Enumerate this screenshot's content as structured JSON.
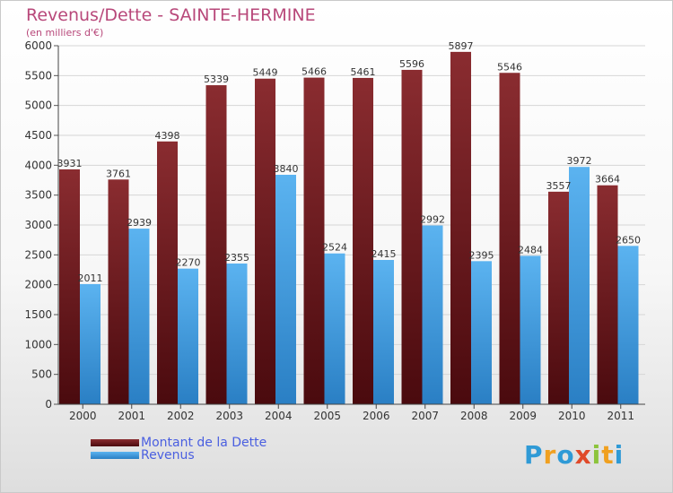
{
  "title": "Revenus/Dette - SAINTE-HERMINE",
  "subtitle": "(en milliers d'€)",
  "logo": {
    "letters": [
      "P",
      "r",
      "o",
      "x",
      "i",
      "t",
      "i"
    ],
    "colors": [
      "#2f9ad6",
      "#f0a020",
      "#2f9ad6",
      "#e04a2a",
      "#8cc43c",
      "#f0a020",
      "#2f9ad6"
    ]
  },
  "colors": {
    "dette": "#7a1f24",
    "revenus": "#3d9ee6",
    "title": "#b8487a",
    "legend_text": "#4a5fe0"
  },
  "chart_data": {
    "type": "bar",
    "title": "Revenus/Dette - SAINTE-HERMINE",
    "ylabel": "(en milliers d'€)",
    "categories": [
      "2000",
      "2001",
      "2002",
      "2003",
      "2004",
      "2005",
      "2006",
      "2007",
      "2008",
      "2009",
      "2010",
      "2011"
    ],
    "series": [
      {
        "name": "Montant de la Dette",
        "values": [
          3931,
          3761,
          4398,
          5339,
          5449,
          5466,
          5461,
          5596,
          5897,
          5546,
          3557,
          3664
        ]
      },
      {
        "name": "Revenus",
        "values": [
          2011,
          2939,
          2270,
          2355,
          3840,
          2524,
          2415,
          2992,
          2395,
          2484,
          3972,
          2650
        ]
      }
    ],
    "ylim": [
      0,
      6000
    ],
    "yticks": [
      0,
      500,
      1000,
      1500,
      2000,
      2500,
      3000,
      3500,
      4000,
      4500,
      5000,
      5500,
      6000
    ],
    "grid": true,
    "legend_position": "bottom-left"
  }
}
